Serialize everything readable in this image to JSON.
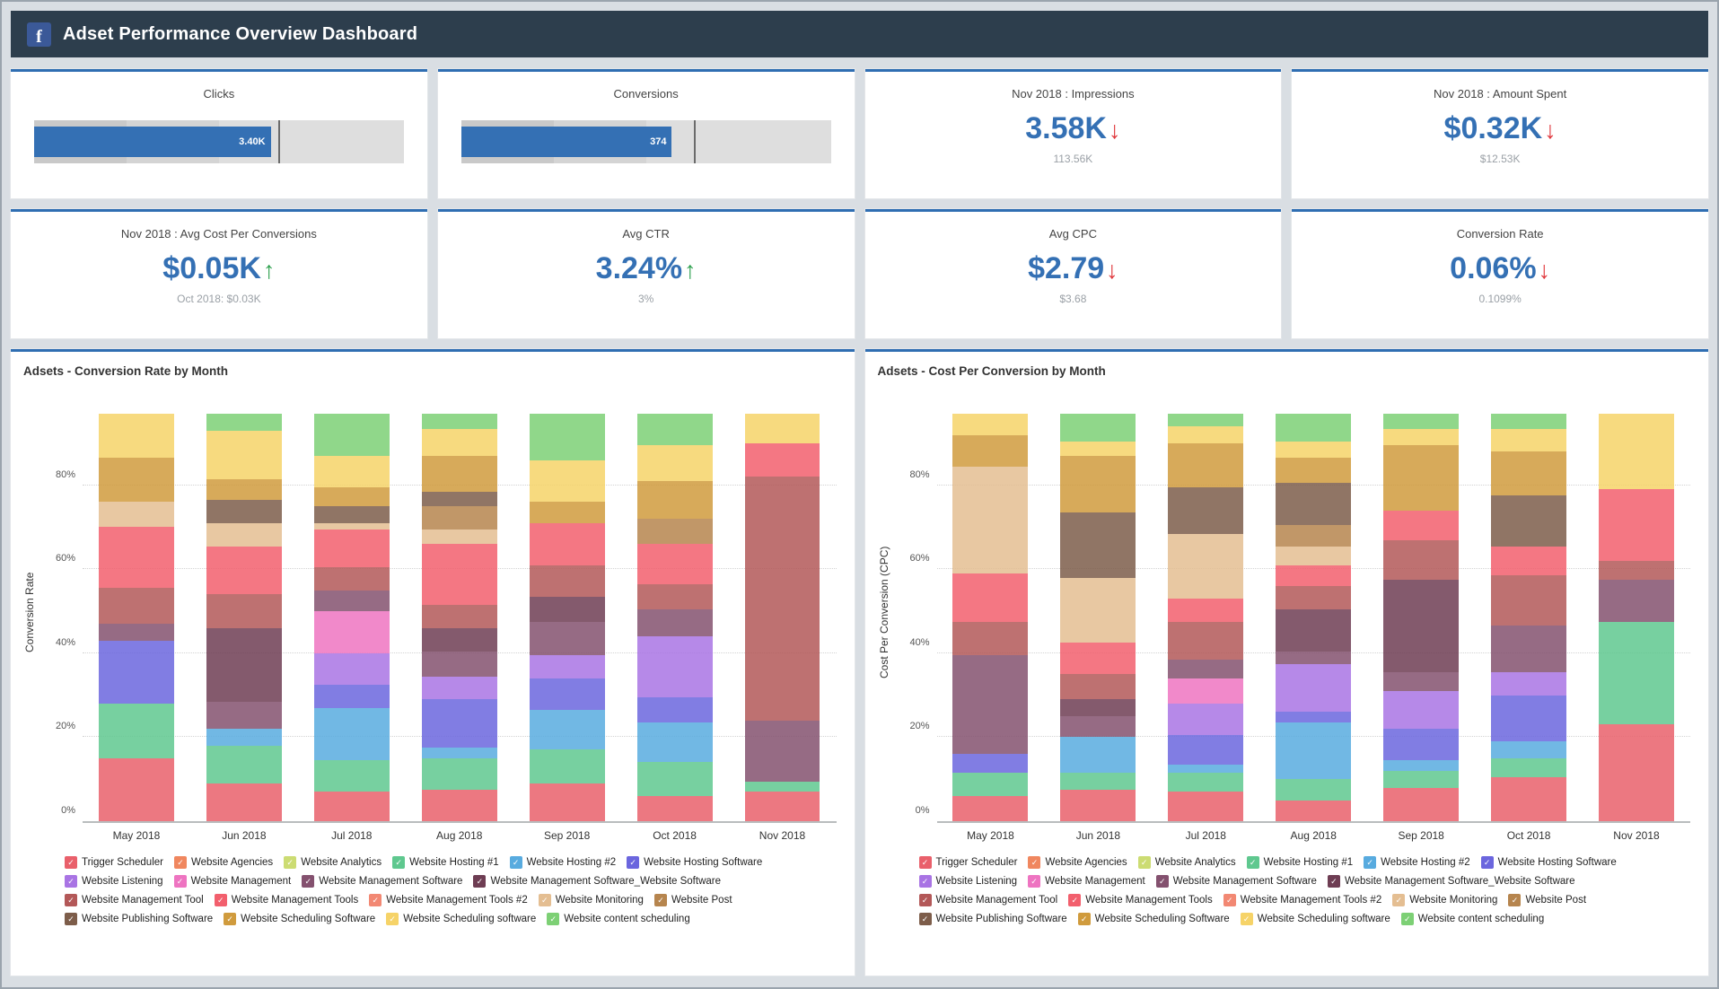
{
  "header": {
    "logo": "f",
    "title": "Adset Performance Overview Dashboard"
  },
  "kpi_row1": [
    {
      "type": "bullet",
      "title": "Clicks",
      "value": "3.40K",
      "bar_pct": 64,
      "target_pct": 66
    },
    {
      "type": "bullet",
      "title": "Conversions",
      "value": "374",
      "bar_pct": 57,
      "target_pct": 63
    },
    {
      "type": "metric",
      "title": "Nov 2018 : Impressions",
      "value": "3.58K",
      "trend": "down",
      "sub": "113.56K"
    },
    {
      "type": "metric",
      "title": "Nov 2018 : Amount Spent",
      "value": "$0.32K",
      "trend": "down",
      "sub": "$12.53K"
    }
  ],
  "kpi_row2": [
    {
      "type": "metric",
      "title": "Nov 2018 : Avg Cost Per Conversions",
      "value": "$0.05K",
      "trend": "up",
      "sub": "Oct 2018: $0.03K"
    },
    {
      "type": "metric",
      "title": "Avg CTR",
      "value": "3.24%",
      "trend": "up",
      "sub": "3%"
    },
    {
      "type": "metric",
      "title": "Avg CPC",
      "value": "$2.79",
      "trend": "down",
      "sub": "$3.68"
    },
    {
      "type": "metric",
      "title": "Conversion Rate",
      "value": "0.06%",
      "trend": "down",
      "sub": "0.1099%"
    }
  ],
  "colors": {
    "accent_blue": "#2f6eb2",
    "value_blue": "#3470b4",
    "trend_up": "#2fa14f",
    "trend_down": "#e0393e",
    "header_bg": "#2d3e4d",
    "facebook_blue": "#3b5998"
  },
  "adsets": [
    {
      "name": "Trigger Scheduler",
      "color": "#e9606b"
    },
    {
      "name": "Website Agencies",
      "color": "#f0875f"
    },
    {
      "name": "Website Analytics",
      "color": "#ccdc73"
    },
    {
      "name": "Website Hosting #1",
      "color": "#5fc88f"
    },
    {
      "name": "Website Hosting #2",
      "color": "#58abdf"
    },
    {
      "name": "Website Hosting Software",
      "color": "#6b66de"
    },
    {
      "name": "Website Listening",
      "color": "#a974e4"
    },
    {
      "name": "Website Management",
      "color": "#ee74c1"
    },
    {
      "name": "Website Management Software",
      "color": "#84516f"
    },
    {
      "name": "Website Management Software_Website Software",
      "color": "#6e3d53"
    },
    {
      "name": "Website Management Tool",
      "color": "#b35858"
    },
    {
      "name": "Website Management Tools",
      "color": "#f25f6d"
    },
    {
      "name": "Website Management Tools #2",
      "color": "#f28873"
    },
    {
      "name": "Website Monitoring",
      "color": "#e4be92"
    },
    {
      "name": "Website Post",
      "color": "#b6854e"
    },
    {
      "name": "Website Publishing Software",
      "color": "#7d5d4a"
    },
    {
      "name": "Website Scheduling Software",
      "color": "#d09b3d"
    },
    {
      "name": "Website Scheduling software",
      "color": "#f6d368"
    },
    {
      "name": "Website content scheduling",
      "color": "#7dd075"
    }
  ],
  "chart_data": [
    {
      "type": "bar",
      "stacked": true,
      "title": "Adsets - Conversion Rate by Month",
      "xlabel": "",
      "ylabel": "Conversion Rate",
      "ylim": [
        0,
        100
      ],
      "yticks": [
        0,
        20,
        40,
        60,
        80
      ],
      "ytick_labels": [
        "0%",
        "20%",
        "40%",
        "60%",
        "80%"
      ],
      "grid": "dotted-horizontal",
      "legend_position": "bottom",
      "categories": [
        "May 2018",
        "Jun 2018",
        "Jul 2018",
        "Aug 2018",
        "Sep 2018",
        "Oct 2018",
        "Nov 2018"
      ],
      "series": [
        {
          "name": "Trigger Scheduler",
          "values": [
            15,
            9,
            7,
            7.5,
            9,
            6,
            7
          ]
        },
        {
          "name": "Website Agencies",
          "values": [
            0,
            0,
            0,
            0,
            0,
            0,
            0
          ]
        },
        {
          "name": "Website Analytics",
          "values": [
            0,
            0,
            0,
            0,
            0,
            0,
            0
          ]
        },
        {
          "name": "Website Hosting #1",
          "values": [
            13,
            9,
            7.5,
            7.5,
            8,
            8,
            2.5
          ]
        },
        {
          "name": "Website Hosting #2",
          "values": [
            0,
            4,
            12.5,
            2.5,
            9.5,
            9.5,
            0
          ]
        },
        {
          "name": "Website Hosting Software",
          "values": [
            15,
            0,
            5.5,
            11.5,
            7.5,
            6,
            0
          ]
        },
        {
          "name": "Website Listening",
          "values": [
            0,
            0,
            7.5,
            5.5,
            5.5,
            14.5,
            0
          ]
        },
        {
          "name": "Website Management",
          "values": [
            0,
            0,
            10,
            0,
            0,
            0,
            0
          ]
        },
        {
          "name": "Website Management Software",
          "values": [
            4,
            6.5,
            5,
            6,
            8,
            6.5,
            14.5
          ]
        },
        {
          "name": "Website Management Software_Website Software",
          "values": [
            0,
            17.5,
            0,
            5.5,
            6,
            0,
            0
          ]
        },
        {
          "name": "Website Management Tool",
          "values": [
            8.5,
            8,
            5.5,
            5.5,
            7.5,
            6,
            58
          ]
        },
        {
          "name": "Website Management Tools",
          "values": [
            14.5,
            11.5,
            9,
            14.5,
            10,
            9.5,
            8
          ]
        },
        {
          "name": "Website Management Tools #2",
          "values": [
            0,
            0,
            0,
            0,
            0,
            0,
            0
          ]
        },
        {
          "name": "Website Monitoring",
          "values": [
            6,
            5.5,
            1.5,
            3.5,
            0,
            0,
            0
          ]
        },
        {
          "name": "Website Post",
          "values": [
            0,
            0,
            0,
            5.5,
            0,
            6,
            0
          ]
        },
        {
          "name": "Website Publishing Software",
          "values": [
            0,
            5.5,
            4,
            3.5,
            0,
            0,
            0
          ]
        },
        {
          "name": "Website Scheduling Software",
          "values": [
            10.5,
            5,
            4.5,
            8.5,
            5,
            9,
            0
          ]
        },
        {
          "name": "Website Scheduling software",
          "values": [
            10.5,
            11.5,
            7.5,
            6.5,
            10,
            8.5,
            7
          ]
        },
        {
          "name": "Website content scheduling",
          "values": [
            0,
            4,
            10,
            3.5,
            11,
            7.5,
            0
          ]
        }
      ]
    },
    {
      "type": "bar",
      "stacked": true,
      "title": "Adsets - Cost Per Conversion by Month",
      "xlabel": "",
      "ylabel": "Cost Per Conversion (CPC)",
      "ylim": [
        0,
        100
      ],
      "yticks": [
        0,
        20,
        40,
        60,
        80
      ],
      "ytick_labels": [
        "0%",
        "20%",
        "40%",
        "60%",
        "80%"
      ],
      "grid": "dotted-horizontal",
      "legend_position": "bottom",
      "categories": [
        "May 2018",
        "Jun 2018",
        "Jul 2018",
        "Aug 2018",
        "Sep 2018",
        "Oct 2018",
        "Nov 2018"
      ],
      "series": [
        {
          "name": "Trigger Scheduler",
          "values": [
            6,
            7.5,
            7,
            5,
            8,
            10.5,
            23
          ]
        },
        {
          "name": "Website Agencies",
          "values": [
            0,
            0,
            0,
            0,
            0,
            0,
            0
          ]
        },
        {
          "name": "Website Analytics",
          "values": [
            0,
            0,
            0,
            0,
            0,
            0,
            0
          ]
        },
        {
          "name": "Website Hosting #1",
          "values": [
            5.5,
            4,
            4.5,
            5,
            4,
            4.5,
            24.5
          ]
        },
        {
          "name": "Website Hosting #2",
          "values": [
            0,
            8.5,
            2,
            13.5,
            2.5,
            4,
            0
          ]
        },
        {
          "name": "Website Hosting Software",
          "values": [
            4.5,
            0,
            7,
            2.5,
            7.5,
            11,
            0
          ]
        },
        {
          "name": "Website Listening",
          "values": [
            0,
            0,
            7.5,
            11.5,
            9,
            5.5,
            0
          ]
        },
        {
          "name": "Website Management",
          "values": [
            0,
            0,
            6,
            0,
            0,
            0,
            0
          ]
        },
        {
          "name": "Website Management Software",
          "values": [
            23.5,
            5,
            4.5,
            3,
            4.5,
            11,
            10
          ]
        },
        {
          "name": "Website Management Software_Website Software",
          "values": [
            0,
            4,
            0,
            10,
            22,
            0,
            0
          ]
        },
        {
          "name": "Website Management Tool",
          "values": [
            8,
            6,
            9,
            5.5,
            9.5,
            12,
            4.5
          ]
        },
        {
          "name": "Website Management Tools",
          "values": [
            11.5,
            7.5,
            5.5,
            5,
            7,
            7,
            17
          ]
        },
        {
          "name": "Website Management Tools #2",
          "values": [
            0,
            0,
            0,
            0,
            0,
            0,
            0
          ]
        },
        {
          "name": "Website Monitoring",
          "values": [
            25.5,
            15.5,
            15.5,
            4.5,
            0,
            0,
            0
          ]
        },
        {
          "name": "Website Post",
          "values": [
            0,
            0,
            0,
            5,
            0,
            0,
            0
          ]
        },
        {
          "name": "Website Publishing Software",
          "values": [
            0,
            15.5,
            11,
            10,
            0,
            12,
            0
          ]
        },
        {
          "name": "Website Scheduling Software",
          "values": [
            7.5,
            13.5,
            10.5,
            6,
            15.5,
            10.5,
            0
          ]
        },
        {
          "name": "Website Scheduling software",
          "values": [
            5,
            3.5,
            4,
            4,
            4,
            5.5,
            18
          ]
        },
        {
          "name": "Website content scheduling",
          "values": [
            0,
            6.5,
            3,
            6.5,
            3.5,
            3.5,
            0
          ]
        }
      ]
    }
  ]
}
